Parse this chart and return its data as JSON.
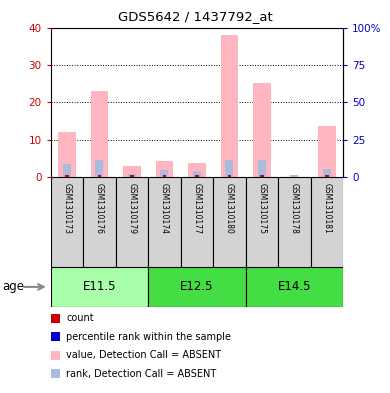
{
  "title": "GDS5642 / 1437792_at",
  "samples": [
    "GSM1310173",
    "GSM1310176",
    "GSM1310179",
    "GSM1310174",
    "GSM1310177",
    "GSM1310180",
    "GSM1310175",
    "GSM1310178",
    "GSM1310181"
  ],
  "age_groups": [
    {
      "label": "E11.5",
      "start": 0,
      "end": 3,
      "color": "#AAFFAA"
    },
    {
      "label": "E12.5",
      "start": 3,
      "end": 6,
      "color": "#44DD44"
    },
    {
      "label": "E14.5",
      "start": 6,
      "end": 9,
      "color": "#44DD44"
    }
  ],
  "value_absent": [
    12.0,
    23.0,
    3.0,
    4.2,
    3.8,
    38.0,
    25.2,
    0.0,
    13.5
  ],
  "rank_absent": [
    8.5,
    11.0,
    1.8,
    4.3,
    3.8,
    11.2,
    11.0,
    1.0,
    5.5
  ],
  "count_red": [
    0.4,
    0.4,
    0.4,
    0.4,
    0.4,
    0.4,
    0.4,
    0.0,
    0.4
  ],
  "ylim_left": [
    0,
    40
  ],
  "ylim_right": [
    0,
    100
  ],
  "yticks_left": [
    0,
    10,
    20,
    30,
    40
  ],
  "yticks_right": [
    0,
    25,
    50,
    75,
    100
  ],
  "ytick_right_labels": [
    "0",
    "25",
    "50",
    "75",
    "100%"
  ],
  "bar_color_absent_value": "#FFB6C1",
  "bar_color_absent_rank": "#AABBDD",
  "count_color_red": "#CC0000",
  "count_color_blue": "#0000CC",
  "axis_label_left_color": "#CC0000",
  "axis_label_right_color": "#0000CC",
  "sample_box_color": "#D3D3D3",
  "legend_items": [
    {
      "color": "#CC0000",
      "label": "count",
      "size": 7
    },
    {
      "color": "#0000CC",
      "label": "percentile rank within the sample",
      "size": 7
    },
    {
      "color": "#FFB6C1",
      "label": "value, Detection Call = ABSENT",
      "size": 7
    },
    {
      "color": "#AABBDD",
      "label": "rank, Detection Call = ABSENT",
      "size": 7
    }
  ]
}
